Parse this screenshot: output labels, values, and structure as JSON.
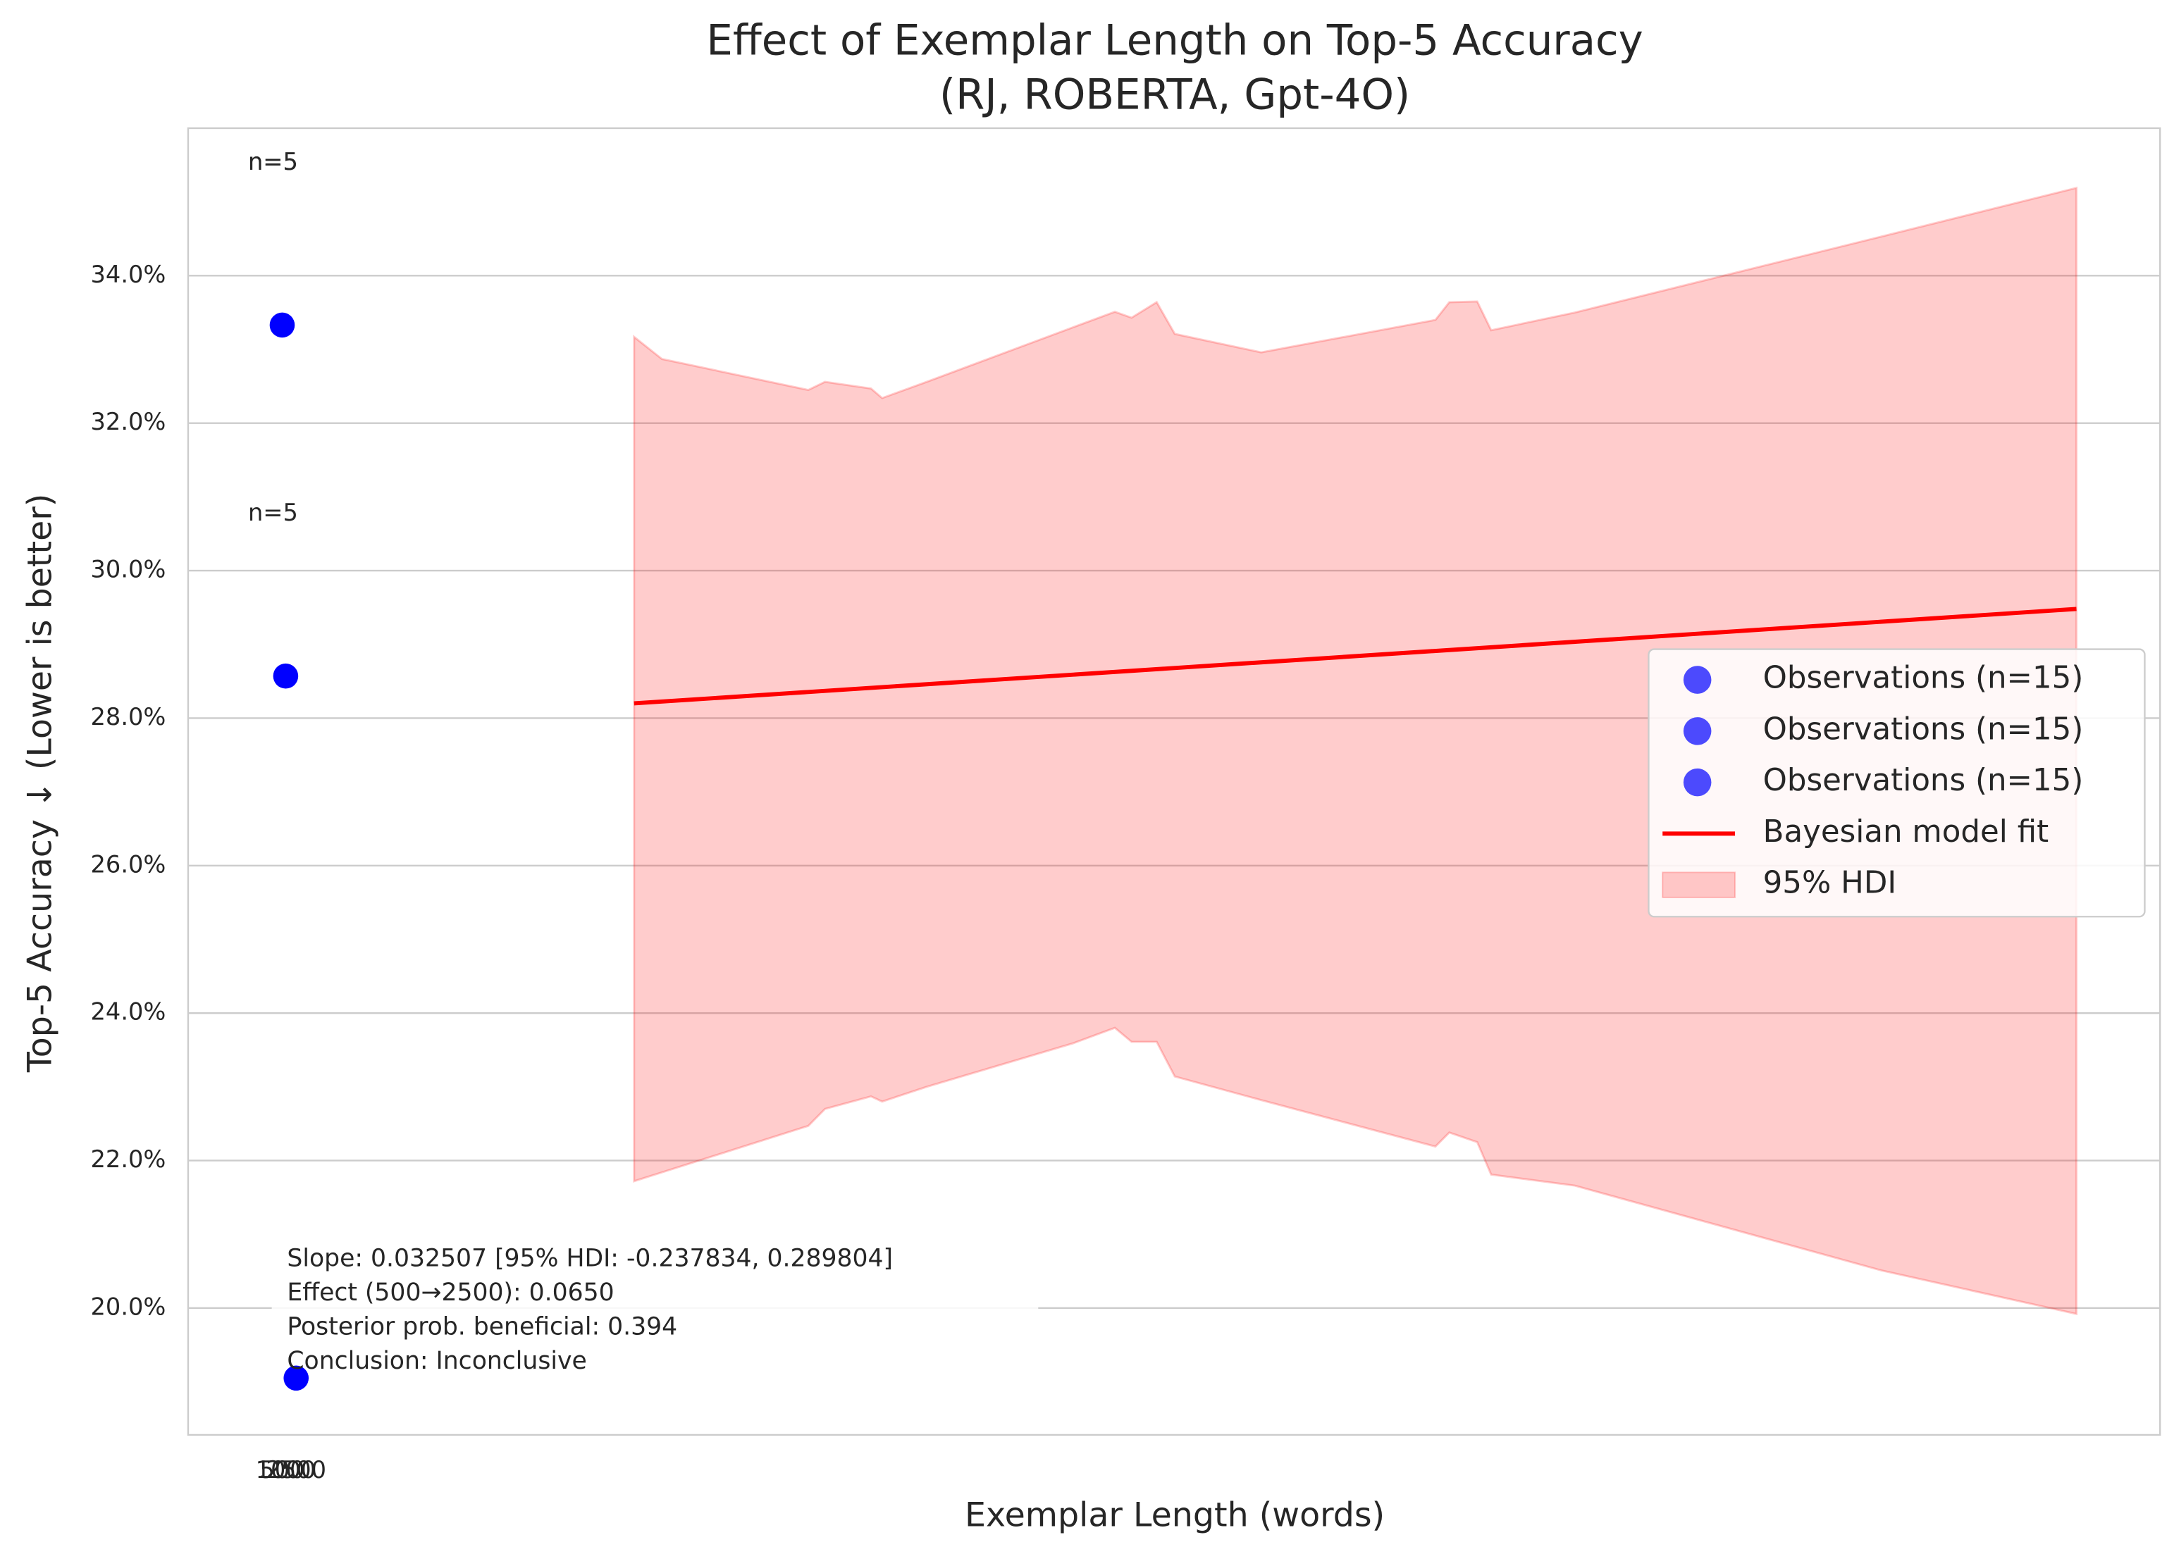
{
  "chart_data": {
    "type": "scatter",
    "title": "Effect of Exemplar Length on Top-5 Accuracy",
    "subtitle": "(RJ, ROBERTA, Gpt-4O)",
    "x_label": "Exemplar Length (words)",
    "y_label": "Top-5 Accuracy ↓ (Lower is better)",
    "xlim": [
      -13000,
      270000
    ],
    "xticks": [
      2500,
      1000,
      500
    ],
    "ylim": [
      18.28,
      36.0
    ],
    "yticks": [
      {
        "value": 20,
        "label": "20.0%"
      },
      {
        "value": 22,
        "label": "22.0%"
      },
      {
        "value": 24,
        "label": "24.0%"
      },
      {
        "value": 26,
        "label": "26.0%"
      },
      {
        "value": 28,
        "label": "28.0%"
      },
      {
        "value": 30,
        "label": "30.0%"
      },
      {
        "value": 32,
        "label": "32.0%"
      },
      {
        "value": 34,
        "label": "34.0%"
      }
    ],
    "grid": true,
    "legend": "center right",
    "series": [
      {
        "name": "Observations (n=15)",
        "color": "#0000ff",
        "x": [
          500
        ],
        "values": [
          33.33
        ]
      },
      {
        "name": "Observations (n=15)",
        "color": "#0000ff",
        "x": [
          1000
        ],
        "values": [
          28.57
        ]
      },
      {
        "name": "Observations (n=15)",
        "color": "#0000ff",
        "x": [
          2500
        ],
        "values": [
          19.05
        ]
      }
    ],
    "fit": {
      "name": "Bayesian model fit",
      "color": "#ff0000",
      "x": [
        51000,
        258000
      ],
      "values": [
        28.2,
        29.48
      ]
    },
    "hdi": {
      "name": "95% HDI",
      "color": "#ff0000",
      "x": [
        51000,
        55000,
        76000,
        78400,
        85000,
        86600,
        93000,
        114000,
        120000,
        122400,
        126000,
        128600,
        141000,
        166000,
        168000,
        172000,
        174000,
        186000,
        230000,
        258000
      ],
      "upper": [
        33.17,
        32.87,
        32.45,
        32.56,
        32.47,
        32.34,
        32.56,
        33.3,
        33.51,
        33.43,
        33.64,
        33.21,
        32.96,
        33.4,
        33.64,
        33.65,
        33.26,
        33.5,
        34.53,
        35.19
      ],
      "lower": [
        21.72,
        21.84,
        22.47,
        22.7,
        22.87,
        22.8,
        23.0,
        23.59,
        23.8,
        23.61,
        23.61,
        23.14,
        22.82,
        22.19,
        22.38,
        22.25,
        21.81,
        21.66,
        20.51,
        19.92
      ]
    },
    "annotations": [
      "n=5",
      "n=5",
      "n=5"
    ],
    "stats_text": [
      "Slope: 0.032507 [95% HDI: -0.237834, 0.289804]",
      "Effect (500→2500): 0.0650",
      "Posterior prob. beneficial: 0.394",
      "Conclusion: Inconclusive"
    ]
  }
}
